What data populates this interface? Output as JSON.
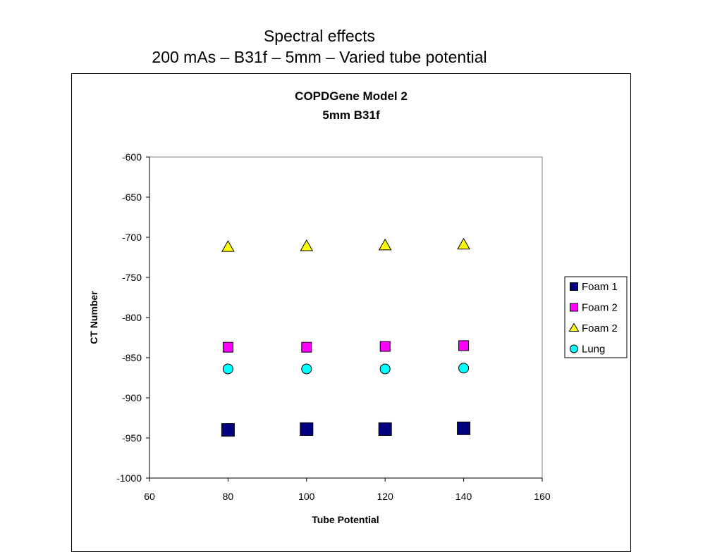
{
  "slide": {
    "title_line1": "Spectral effects",
    "title_line2": "200 mAs – B31f – 5mm – Varied tube potential"
  },
  "chart_data": {
    "type": "scatter",
    "title": "COPDGene Model 2",
    "subtitle": "5mm B31f",
    "xlabel": "Tube Potential",
    "ylabel": "CT Number",
    "xlim": [
      60,
      160
    ],
    "ylim": [
      -1000,
      -600
    ],
    "xticks": [
      60,
      80,
      100,
      120,
      140,
      160
    ],
    "yticks": [
      -600,
      -650,
      -700,
      -750,
      -800,
      -850,
      -900,
      -950,
      -1000
    ],
    "grid": false,
    "legend_position": "right",
    "series": [
      {
        "name": "Foam 1",
        "marker": "square",
        "color": "#000080",
        "x": [
          80,
          100,
          120,
          140
        ],
        "y": [
          -940,
          -939,
          -939,
          -938
        ]
      },
      {
        "name": "Foam 2",
        "marker": "square",
        "color": "#ff00ff",
        "x": [
          80,
          100,
          120,
          140
        ],
        "y": [
          -837,
          -837,
          -836,
          -835
        ]
      },
      {
        "name": "Foam 2",
        "marker": "triangle",
        "color": "#ffff00",
        "x": [
          80,
          100,
          120,
          140
        ],
        "y": [
          -712,
          -711,
          -710,
          -709
        ]
      },
      {
        "name": "Lung",
        "marker": "circle",
        "color": "#00ffff",
        "x": [
          80,
          100,
          120,
          140
        ],
        "y": [
          -864,
          -864,
          -864,
          -863
        ]
      }
    ]
  }
}
